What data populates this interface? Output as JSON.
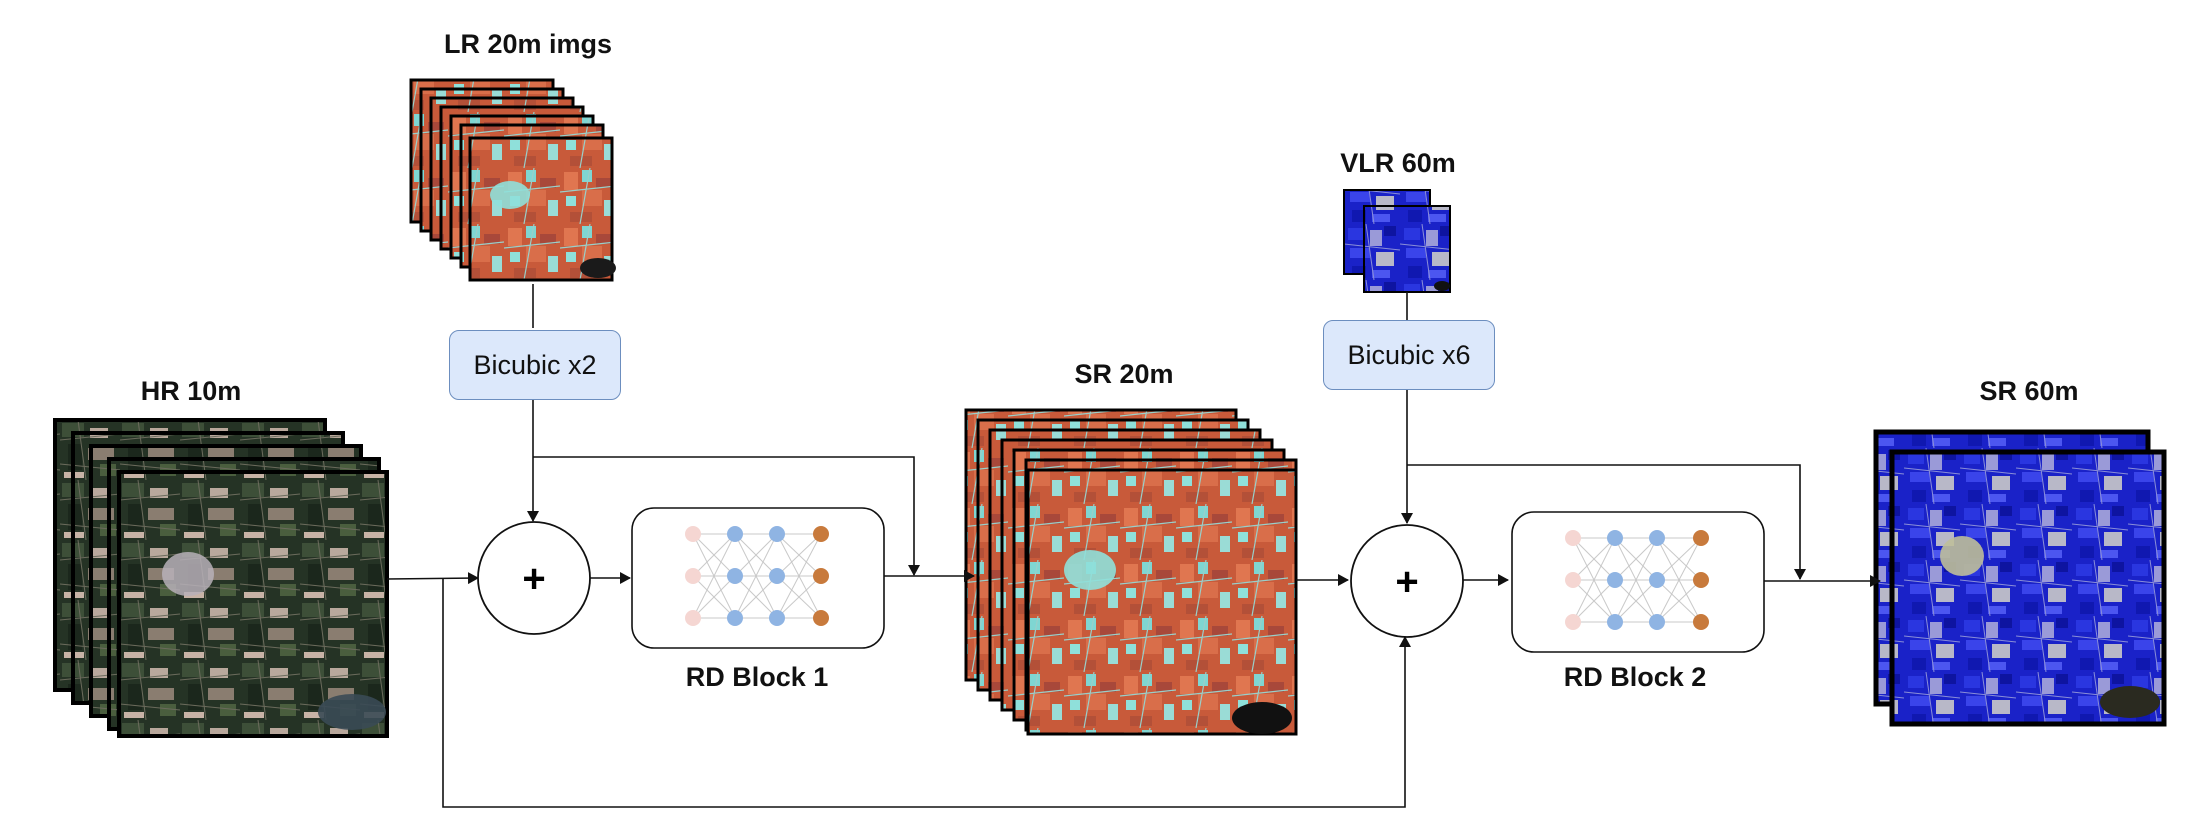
{
  "inputs": {
    "hr": {
      "label": "HR 10m"
    },
    "lr": {
      "label": "LR 20m imgs"
    },
    "vlr": {
      "label": "VLR 60m"
    }
  },
  "operations": {
    "bicubic_x2": {
      "label": "Bicubic x2"
    },
    "bicubic_x6": {
      "label": "Bicubic x6"
    },
    "add_symbol": "+"
  },
  "blocks": {
    "rd1": {
      "label": "RD Block 1"
    },
    "rd2": {
      "label": "RD Block 2"
    }
  },
  "outputs": {
    "sr20": {
      "label": "SR 20m"
    },
    "sr60": {
      "label": "SR 60m"
    }
  },
  "colors": {
    "neuron_input": "#f5d6d2",
    "neuron_hidden": "#8fb4e3",
    "neuron_output": "#c87a3c",
    "op_fill": "#dce8fb",
    "op_stroke": "#6c8ebf"
  }
}
